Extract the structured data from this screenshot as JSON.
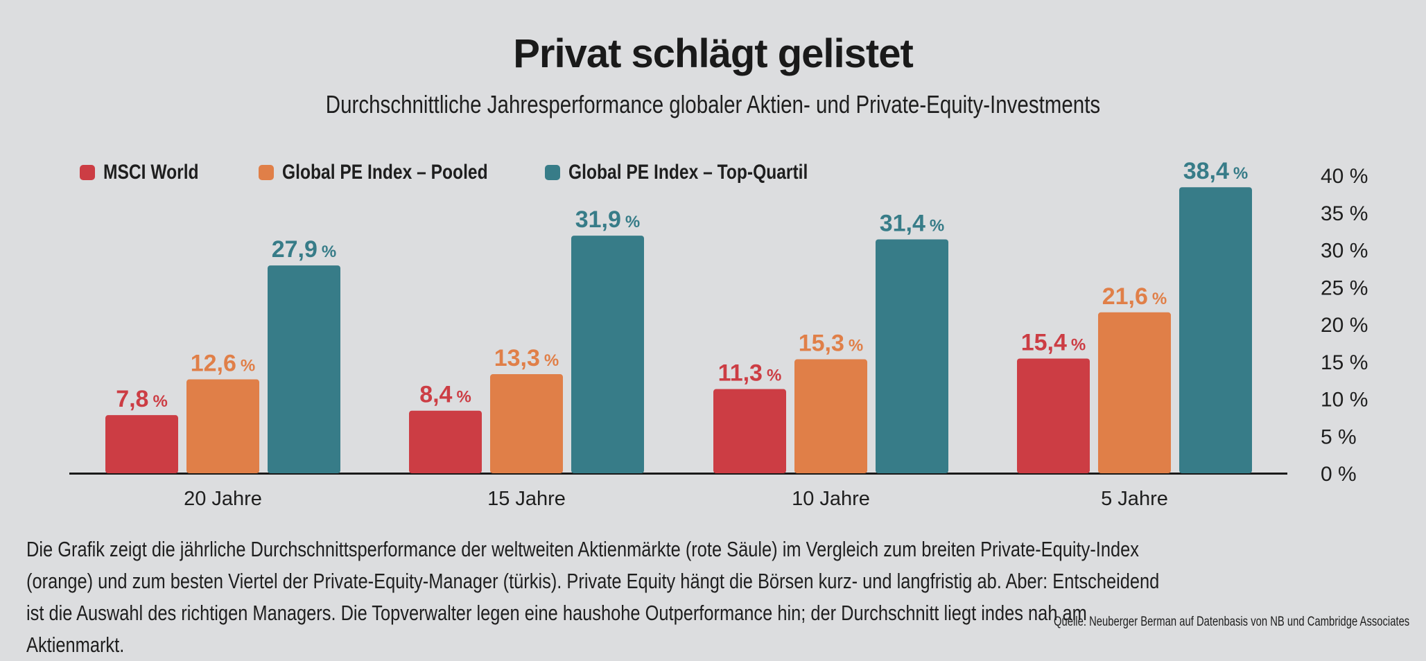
{
  "title": "Privat schlägt gelistet",
  "subtitle": "Durchschnittliche Jahresperformance globaler Aktien- und Private-Equity-Investments",
  "caption": "Die Grafik zeigt die jährliche Durchschnittsperformance der weltweiten Aktienmärkte (rote Säule) im Vergleich zum breiten Private-Equity-Index (orange) und zum besten Viertel der Private-Equity-Manager (türkis). Private Equity hängt die Börsen kurz- und langfristig ab. Aber: Entscheidend ist die Auswahl des richtigen Managers. Die Topverwalter legen eine haushohe Outperformance hin; der Durchschnitt liegt indes nah am Aktienmarkt.",
  "source": "Quelle: Neuberger Berman auf Datenbasis von NB und Cambridge Associates",
  "chart_data": {
    "type": "bar",
    "title": "Privat schlägt gelistet",
    "subtitle": "Durchschnittliche Jahresperformance globaler Aktien- und Private-Equity-Investments",
    "categories": [
      "20 Jahre",
      "15 Jahre",
      "10 Jahre",
      "5 Jahre"
    ],
    "series": [
      {
        "name": "MSCI World",
        "color": "#cc3d44",
        "values": [
          7.8,
          8.4,
          11.3,
          15.4
        ],
        "labels": [
          "7,8",
          "8,4",
          "11,3",
          "15,4"
        ]
      },
      {
        "name": "Global PE Index – Pooled",
        "color": "#e07f48",
        "values": [
          12.6,
          13.3,
          15.3,
          21.6
        ],
        "labels": [
          "12,6",
          "13,3",
          "15,3",
          "21,6"
        ]
      },
      {
        "name": "Global PE Index – Top-Quartil",
        "color": "#377c88",
        "values": [
          27.9,
          31.9,
          31.4,
          38.4
        ],
        "labels": [
          "27,9",
          "31,9",
          "31,4",
          "38,4"
        ]
      }
    ],
    "value_unit": "%",
    "ylim": [
      0,
      40
    ],
    "yticks": [
      0,
      5,
      10,
      15,
      20,
      25,
      30,
      35,
      40
    ],
    "ytick_labels": [
      "0 %",
      "5 %",
      "10 %",
      "15 %",
      "20 %",
      "25 %",
      "30 %",
      "35 %",
      "40 %"
    ],
    "y_axis_side": "right",
    "grid": false,
    "legend_position": "top-left",
    "xlabel": "",
    "ylabel": ""
  }
}
